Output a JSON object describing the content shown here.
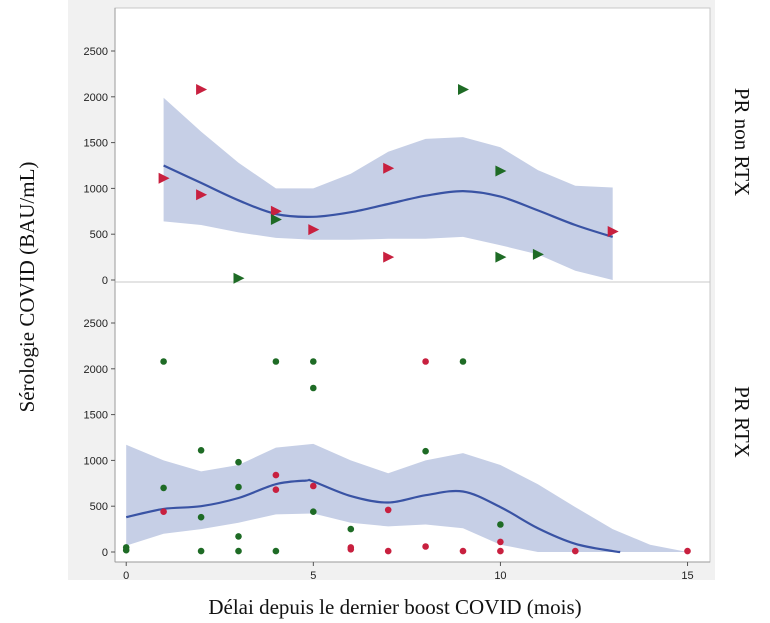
{
  "colors": {
    "band": "#c6cfe6",
    "curve": "#3953a4",
    "group_red": "#c8203f",
    "group_green": "#1e6b25",
    "panel_frame": "#c8c8c8",
    "panel_bg": "#ffffff",
    "outer_bg": "#f1f1f1"
  },
  "chart_data": [
    {
      "type": "scatter",
      "panel": "PR non RTX",
      "marker": "triangle-right",
      "xlabel": "Délai depuis le dernier boost COVID (mois)",
      "ylabel": "Sérologie COVID (BAU/mL)",
      "xlim": [
        -0.3,
        15.6
      ],
      "ylim": [
        0,
        2900
      ],
      "yticks": [
        0,
        500,
        1000,
        1500,
        2000,
        2500
      ],
      "grid": false,
      "series": [
        {
          "color": "red",
          "points": [
            [
              1,
              1110
            ],
            [
              2,
              2080
            ],
            [
              2,
              930
            ],
            [
              4,
              750
            ],
            [
              5,
              550
            ],
            [
              7,
              1220
            ],
            [
              7,
              250
            ],
            [
              13,
              530
            ]
          ]
        },
        {
          "color": "green",
          "points": [
            [
              3,
              20
            ],
            [
              4,
              660
            ],
            [
              9,
              2080
            ],
            [
              10,
              1190
            ],
            [
              10,
              250
            ],
            [
              11,
              280
            ]
          ]
        }
      ],
      "smoother": {
        "x": [
          1,
          2,
          3,
          4,
          5,
          6,
          7,
          8,
          9,
          10,
          11,
          12,
          13
        ],
        "y": [
          1250,
          1060,
          870,
          720,
          690,
          740,
          830,
          920,
          970,
          910,
          760,
          600,
          470
        ]
      },
      "confidence_band": {
        "x": [
          1,
          2,
          3,
          4,
          5,
          6,
          7,
          8,
          9,
          10,
          11,
          12,
          13
        ],
        "lower": [
          640,
          600,
          520,
          460,
          440,
          440,
          450,
          450,
          470,
          380,
          280,
          100,
          0
        ],
        "upper": [
          1990,
          1620,
          1280,
          1000,
          1000,
          1160,
          1400,
          1540,
          1560,
          1450,
          1200,
          1030,
          1010
        ]
      }
    },
    {
      "type": "scatter",
      "panel": "PR RTX",
      "marker": "circle",
      "xlabel": "Délai depuis le dernier boost COVID (mois)",
      "ylabel": "Sérologie COVID (BAU/mL)",
      "xlim": [
        -0.3,
        15.6
      ],
      "ylim": [
        0,
        2900
      ],
      "xticks": [
        0,
        5,
        10,
        15
      ],
      "yticks": [
        0,
        500,
        1000,
        1500,
        2000,
        2500
      ],
      "grid": false,
      "series": [
        {
          "color": "red",
          "points": [
            [
              1,
              440
            ],
            [
              4,
              840
            ],
            [
              4,
              680
            ],
            [
              5,
              720
            ],
            [
              6,
              50
            ],
            [
              6,
              30
            ],
            [
              7,
              460
            ],
            [
              7,
              10
            ],
            [
              8,
              2080
            ],
            [
              8,
              60
            ],
            [
              9,
              10
            ],
            [
              10,
              110
            ],
            [
              10,
              10
            ],
            [
              12,
              10
            ],
            [
              15,
              10
            ]
          ]
        },
        {
          "color": "green",
          "points": [
            [
              0,
              50
            ],
            [
              0,
              20
            ],
            [
              1,
              2080
            ],
            [
              1,
              700
            ],
            [
              2,
              1110
            ],
            [
              2,
              380
            ],
            [
              2,
              10
            ],
            [
              3,
              980
            ],
            [
              3,
              710
            ],
            [
              3,
              170
            ],
            [
              3,
              10
            ],
            [
              4,
              2080
            ],
            [
              4,
              10
            ],
            [
              5,
              2080
            ],
            [
              5,
              1790
            ],
            [
              5,
              440
            ],
            [
              6,
              250
            ],
            [
              8,
              1100
            ],
            [
              9,
              2080
            ],
            [
              10,
              300
            ]
          ]
        }
      ],
      "smoother": {
        "x": [
          0,
          1,
          2,
          3,
          4,
          4.8,
          5,
          6,
          7,
          8,
          9,
          10,
          11,
          12,
          13,
          13.2
        ],
        "y": [
          380,
          470,
          500,
          590,
          740,
          780,
          770,
          610,
          540,
          620,
          660,
          490,
          260,
          90,
          10,
          0
        ]
      },
      "confidence_band": {
        "x": [
          0,
          1,
          2,
          3,
          4,
          5,
          6,
          7,
          8,
          9,
          10,
          11,
          12,
          13,
          14,
          15
        ],
        "lower": [
          70,
          200,
          250,
          320,
          410,
          420,
          320,
          280,
          300,
          260,
          80,
          0,
          0,
          0,
          0,
          0
        ],
        "upper": [
          1170,
          1000,
          880,
          950,
          1140,
          1180,
          1000,
          860,
          1000,
          1080,
          950,
          740,
          490,
          250,
          80,
          0
        ]
      }
    }
  ]
}
